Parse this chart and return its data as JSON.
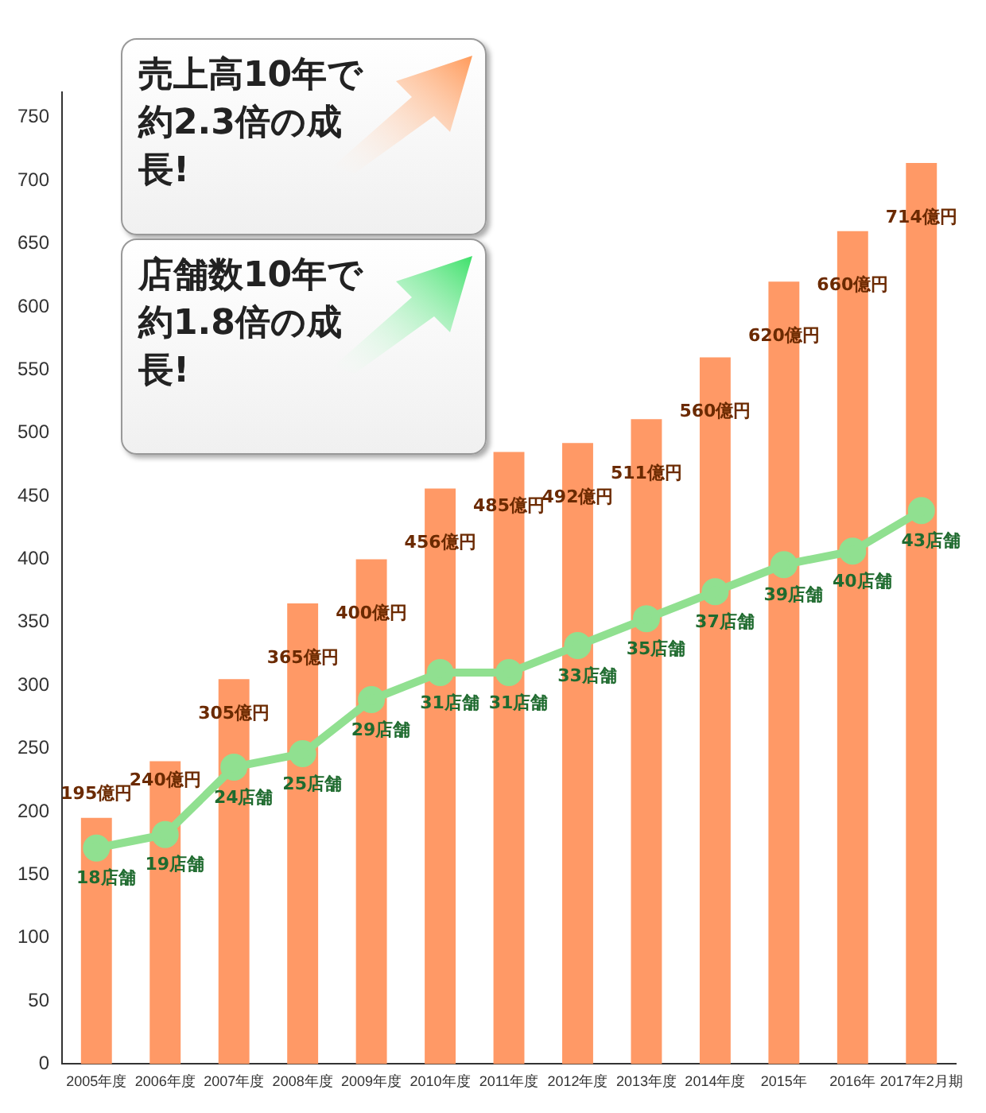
{
  "chart_data": {
    "type": "bar",
    "categories": [
      "2005年度",
      "2006年度",
      "2007年度",
      "2008年度",
      "2009年度",
      "2010年度",
      "2011年度",
      "2012年度",
      "2013年度",
      "2014年度",
      "2015年",
      "2016年",
      "2017年2月期"
    ],
    "series": [
      {
        "color": "#ff9966",
        "values": [
          195,
          240,
          305,
          365,
          400,
          456,
          485,
          492,
          511,
          560,
          620,
          660,
          714
        ],
        "value_labels": [
          "195億円",
          "240億円",
          "305億円",
          "365億円",
          "400億円",
          "456億円",
          "485億円",
          "492億円",
          "511億円",
          "560億円",
          "620億円",
          "660億円",
          "714億円"
        ]
      },
      {
        "type": "line",
        "axis": "y2",
        "color": "#90e090",
        "marker": "circle",
        "values": [
          18,
          19,
          24,
          25,
          29,
          31,
          31,
          33,
          35,
          37,
          39,
          40,
          43
        ],
        "value_labels": [
          "18店舗",
          "19店舗",
          "24店舗",
          "25店舗",
          "29店舗",
          "31店舗",
          "31店舗",
          "33店舗",
          "35店舗",
          "37店舗",
          "39店舗",
          "40店舗",
          "43店舗"
        ]
      }
    ],
    "ylim": [
      0,
      770
    ],
    "yticks": [
      0,
      50,
      100,
      150,
      200,
      250,
      300,
      350,
      400,
      450,
      500,
      550,
      600,
      650,
      700,
      750
    ],
    "y2lim": [
      2,
      74
    ],
    "tick_labels": "xy",
    "grid": false,
    "legend": false,
    "annotations": [
      "売上高10年で約2.3倍の成長!",
      "店舗数10年で約1.8倍の成長!"
    ]
  }
}
